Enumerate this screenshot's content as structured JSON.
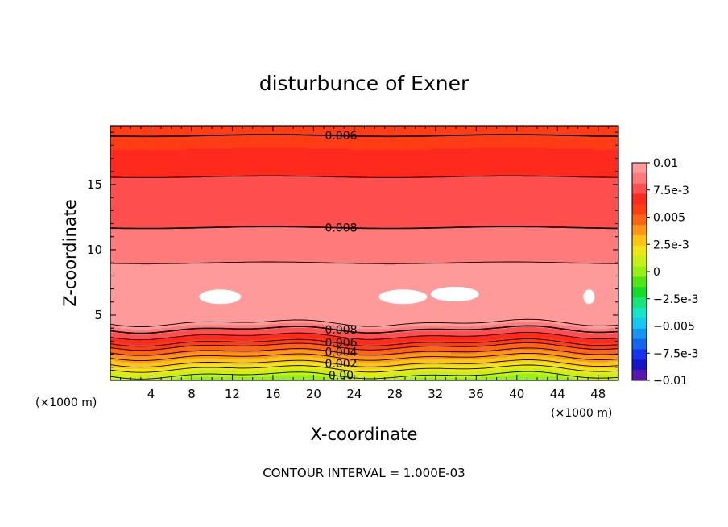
{
  "chart_data": {
    "type": "heatmap",
    "subtype": "filled-contour",
    "title": "disturbunce of Exner",
    "xlabel": "X-coordinate",
    "ylabel": "Z-coordinate",
    "x_unit": "(×1000 m)",
    "y_unit": "(×1000 m)",
    "xlim": [
      0,
      50
    ],
    "ylim": [
      0,
      19.5
    ],
    "x_ticks": [
      "4",
      "8",
      "12",
      "16",
      "20",
      "24",
      "28",
      "32",
      "36",
      "40",
      "44",
      "48"
    ],
    "x_tick_values": [
      4,
      8,
      12,
      16,
      20,
      24,
      28,
      32,
      36,
      40,
      44,
      48
    ],
    "y_ticks": [
      "5",
      "10",
      "15"
    ],
    "y_tick_values": [
      5,
      10,
      15
    ],
    "note": "CONTOUR INTERVAL = 1.000E-03",
    "colorbar": {
      "min": -0.01,
      "max": 0.01,
      "tick_labels": [
        "0.01",
        "7.5e-3",
        "0.005",
        "2.5e-3",
        "0",
        "−2.5e-3",
        "−0.005",
        "−7.5e-3",
        "−0.01"
      ],
      "tick_values": [
        0.01,
        0.0075,
        0.005,
        0.0025,
        0,
        -0.0025,
        -0.005,
        -0.0075,
        -0.01
      ],
      "colors_top_to_bottom": [
        "#ff9a9a",
        "#ff7a7a",
        "#ff4f4f",
        "#ff2a1e",
        "#ff3d14",
        "#ff6414",
        "#ff9614",
        "#ffc414",
        "#f0e614",
        "#c8f014",
        "#96f014",
        "#50e614",
        "#14dc28",
        "#14e678",
        "#14e6c8",
        "#14c8f0",
        "#1496f0",
        "#1464f0",
        "#1432f0",
        "#1414c8",
        "#5a14b4"
      ]
    },
    "profile": {
      "description": "horizontally layered field; value by height z (km)",
      "z": [
        0,
        1,
        2,
        3,
        3.8,
        4.4,
        5,
        8,
        9,
        11,
        13,
        15,
        17,
        18.5,
        19.5
      ],
      "value": [
        0.0,
        0.002,
        0.004,
        0.006,
        0.008,
        0.0095,
        0.0102,
        0.0101,
        0.009,
        0.0082,
        0.0079,
        0.0074,
        0.0065,
        0.0059,
        0.0053
      ]
    },
    "contour_labels": [
      {
        "text": "0.006",
        "z": 18.75
      },
      {
        "text": "0.008",
        "z": 11.7
      },
      {
        "text": "0.008",
        "z": 3.9
      },
      {
        "text": "0.006",
        "z": 2.9
      },
      {
        "text": "0.004",
        "z": 2.2
      },
      {
        "text": "0.002",
        "z": 1.3
      },
      {
        "text": "0.00",
        "z": 0.4
      }
    ],
    "max_regions": [
      {
        "x": 10.8,
        "z": 6.4
      },
      {
        "x": 28.8,
        "z": 6.4
      },
      {
        "x": 33.9,
        "z": 6.6
      },
      {
        "x": 47.1,
        "z": 6.4
      }
    ]
  }
}
